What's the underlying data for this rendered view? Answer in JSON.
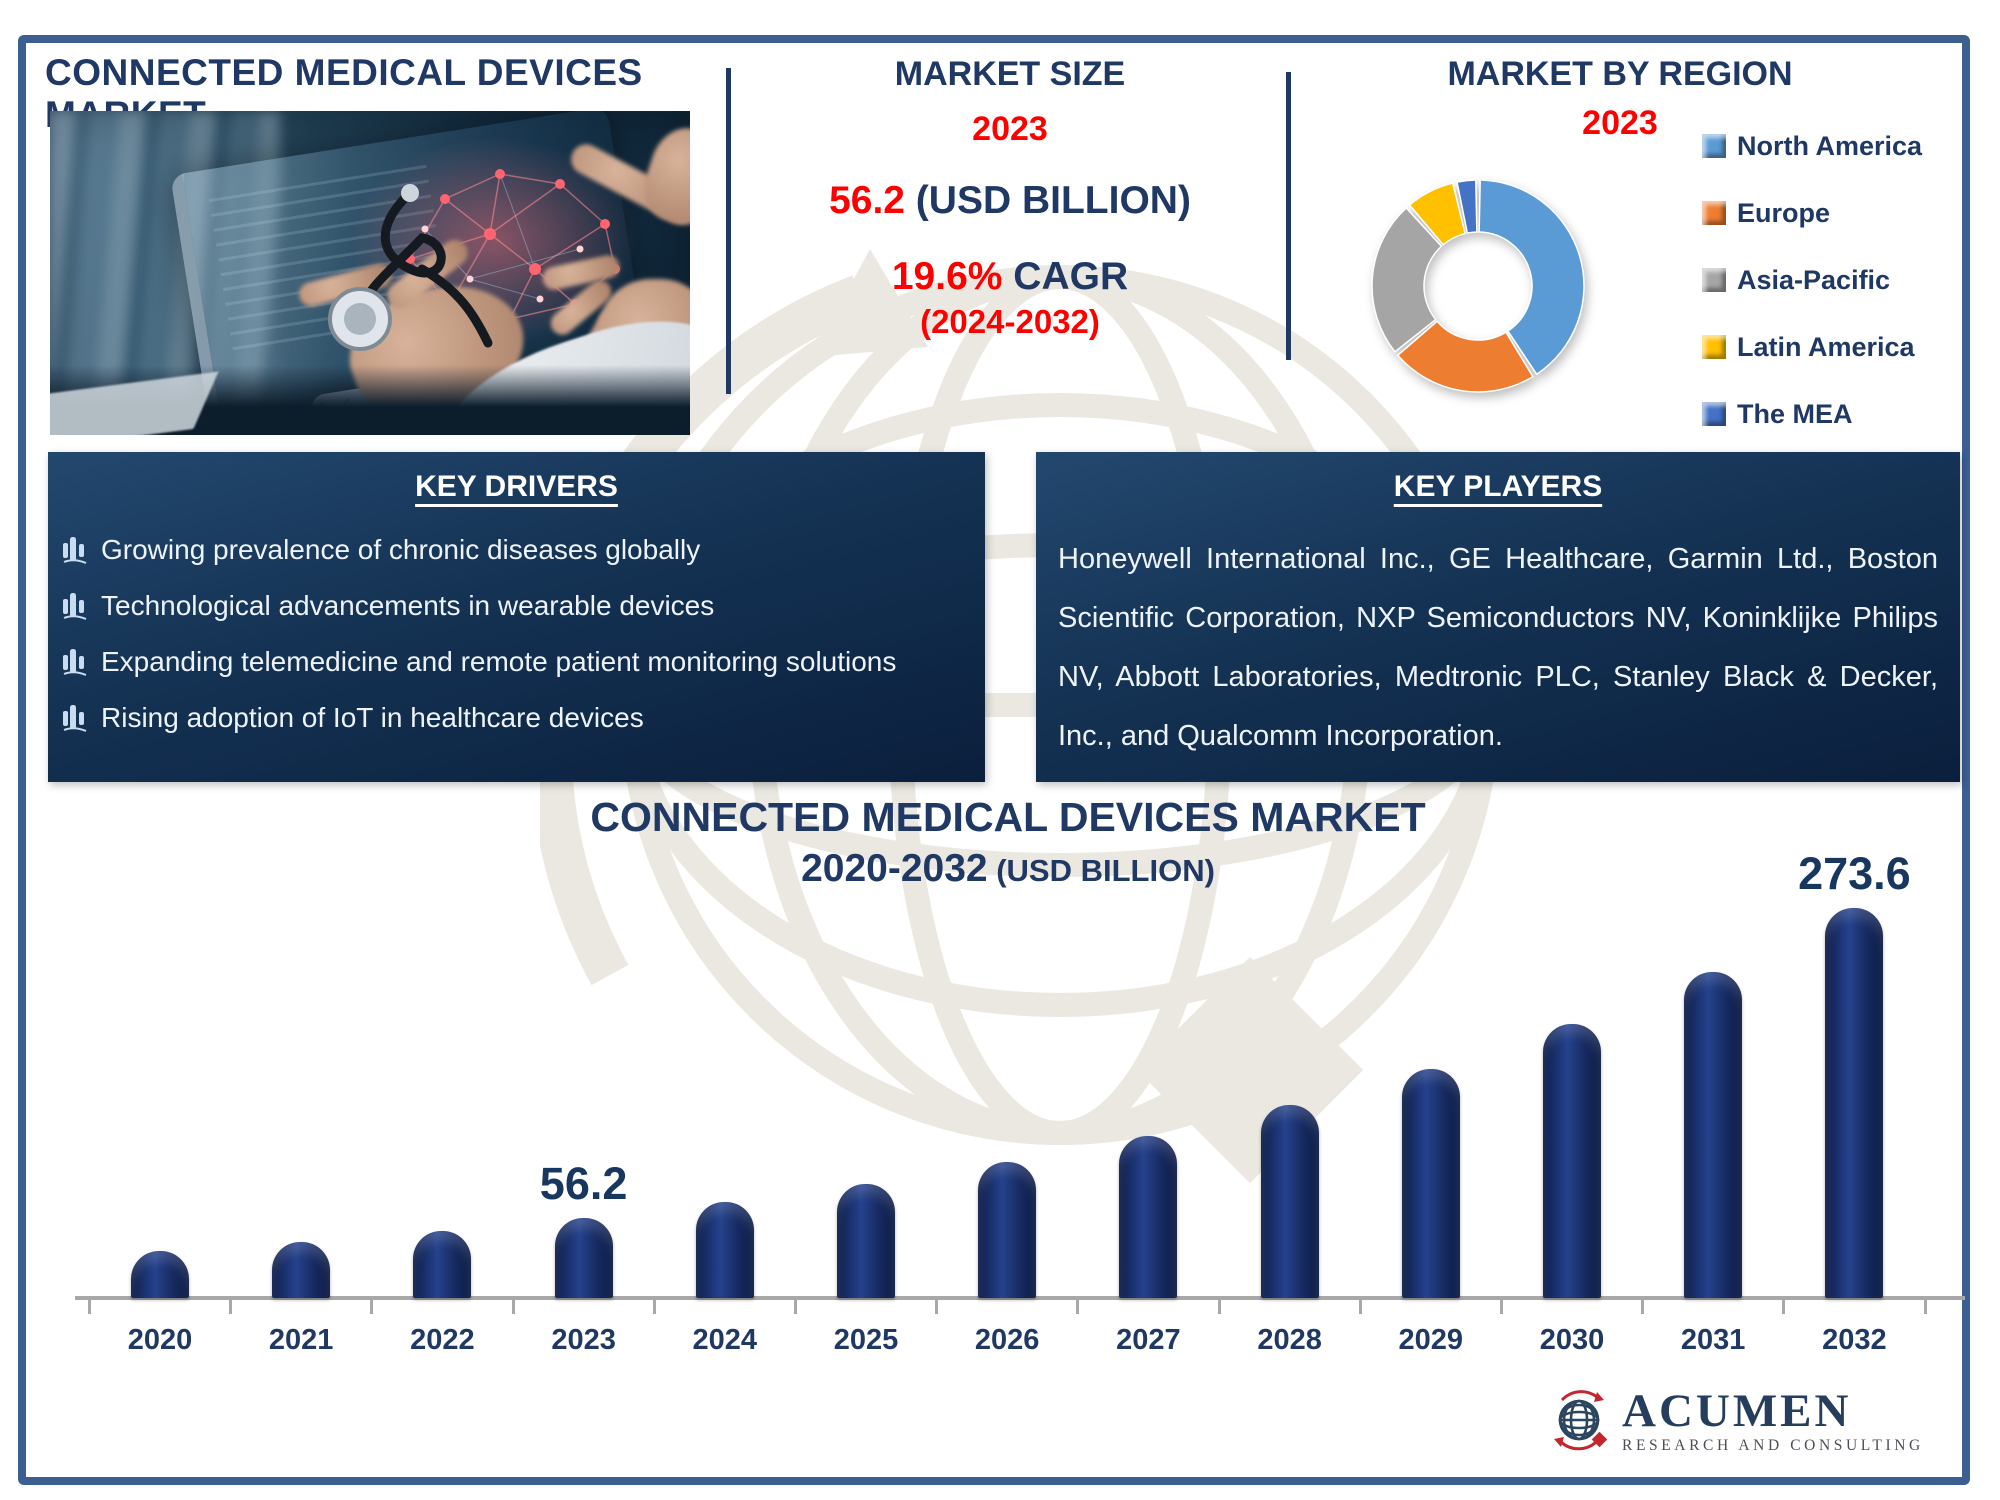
{
  "header": {
    "title": "CONNECTED MEDICAL DEVICES MARKET",
    "market_size": {
      "heading": "MARKET SIZE",
      "year": "2023",
      "value": "56.2",
      "value_unit": " (USD BILLION)",
      "cagr_value": "19.6%",
      "cagr_label": " CAGR",
      "cagr_period": "(2024-2032)"
    },
    "market_by_region": {
      "heading": "MARKET BY REGION",
      "year": "2023"
    }
  },
  "key_drivers": {
    "heading": "KEY DRIVERS",
    "items": [
      "Growing prevalence of chronic diseases globally",
      "Technological advancements in wearable devices",
      "Expanding telemedicine and remote patient monitoring solutions",
      "Rising adoption of IoT in healthcare devices"
    ]
  },
  "key_players": {
    "heading": "KEY PLAYERS",
    "text": "Honeywell International Inc., GE Healthcare, Garmin Ltd., Boston Scientific Corporation, NXP Semiconductors NV, Koninklijke Philips NV, Abbott Laboratories, Medtronic PLC, Stanley Black & Decker, Inc., and Qualcomm Incorporation."
  },
  "chart_data": [
    {
      "type": "bar",
      "title": "CONNECTED MEDICAL DEVICES MARKET",
      "subtitle": "2020-2032",
      "unit_label": " (USD BILLION)",
      "categories": [
        "2020",
        "2021",
        "2022",
        "2023",
        "2024",
        "2025",
        "2026",
        "2027",
        "2028",
        "2029",
        "2030",
        "2031",
        "2032"
      ],
      "values": [
        33.2,
        39.6,
        47.2,
        56.2,
        67.0,
        79.8,
        95.1,
        113.4,
        135.1,
        161.0,
        191.9,
        228.7,
        273.6
      ],
      "data_labels": {
        "2023": "56.2",
        "2032": "273.6"
      },
      "values_estimated_except_labeled": true,
      "ylim": [
        0,
        290
      ],
      "bar_color": "#152a5e",
      "axis_color": "#a8a8a8",
      "grid": false
    },
    {
      "type": "pie",
      "style": "donut",
      "title": "MARKET BY REGION",
      "year": "2023",
      "labels": [
        "North America",
        "Europe",
        "Asia-Pacific",
        "Latin America",
        "The MEA"
      ],
      "values_pct": [
        41,
        23,
        24.5,
        8,
        3.5
      ],
      "values_estimated": true,
      "colors": [
        "#5b9bd5",
        "#ed7d31",
        "#a5a5a5",
        "#ffc000",
        "#4472c4"
      ],
      "legend_position": "right"
    }
  ],
  "logo": {
    "brand": "ACUMEN",
    "tagline": "RESEARCH AND CONSULTING"
  },
  "colors": {
    "navy": "#1f3864",
    "red": "#ff0000",
    "frame": "#3c5f92",
    "panel_dark": "#0a1f3c",
    "bar": "#152a5e",
    "watermark": "#d6d2c2"
  }
}
